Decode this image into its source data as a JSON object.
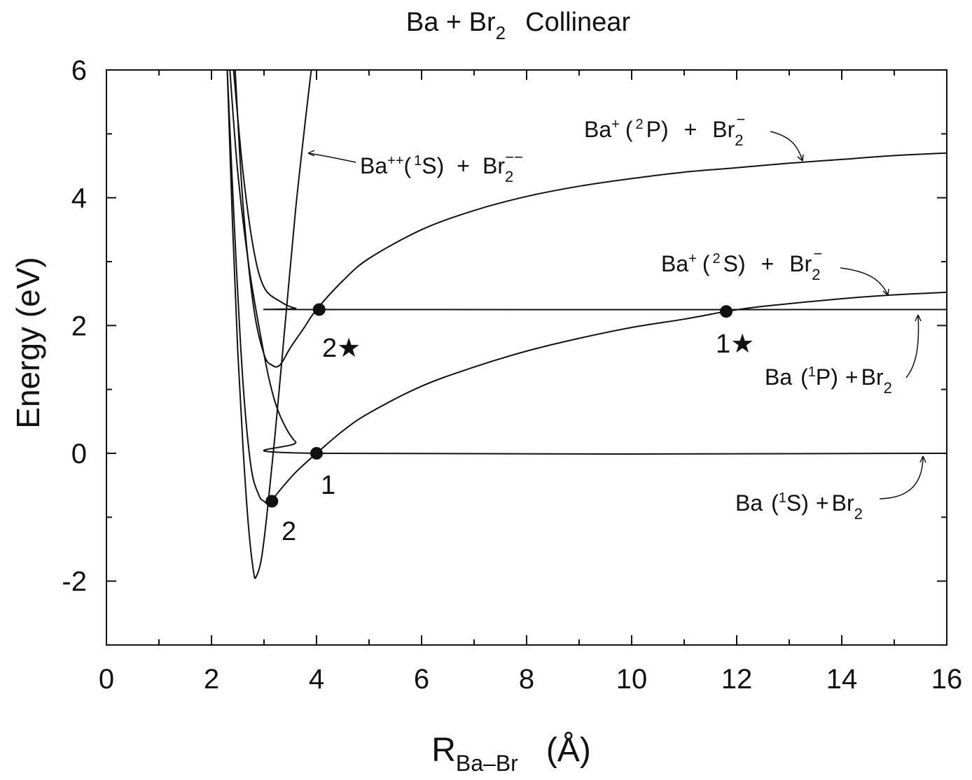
{
  "chart_data": {
    "type": "line",
    "title": {
      "main": "Ba + Br",
      "main_sub": "2",
      "suffix": "Collinear"
    },
    "xlabel": {
      "main": "R",
      "sub": "Ba–Br",
      "unit": "(Å)"
    },
    "ylabel": "Energy (eV)",
    "xlim": [
      0,
      16
    ],
    "ylim": [
      -3,
      6
    ],
    "x_ticks": [
      "0",
      "2",
      "4",
      "6",
      "8",
      "10",
      "12",
      "14",
      "16"
    ],
    "y_ticks": [
      "6",
      "4",
      "2",
      "0",
      "-2"
    ],
    "grid": false,
    "series": [
      {
        "label_id": "ba2-br2",
        "points": [
          [
            2.3,
            6
          ],
          [
            2.4,
            3.6
          ],
          [
            2.5,
            1.6
          ],
          [
            2.6,
            0.1
          ],
          [
            2.7,
            -1.1
          ],
          [
            2.8,
            -1.85
          ],
          [
            2.85,
            -1.93
          ],
          [
            2.95,
            -1.65
          ],
          [
            3.05,
            -1.0
          ],
          [
            3.2,
            0.2
          ],
          [
            3.4,
            2.0
          ],
          [
            3.6,
            3.8
          ],
          [
            3.8,
            5.3
          ],
          [
            3.9,
            6
          ]
        ]
      },
      {
        "label_id": "ba-1p-br2",
        "points": [
          [
            2.42,
            6
          ],
          [
            2.6,
            4.4
          ],
          [
            2.8,
            3.2
          ],
          [
            3.0,
            2.6
          ],
          [
            3.3,
            2.38
          ],
          [
            3.6,
            2.27
          ],
          [
            4.0,
            2.25
          ],
          [
            16,
            2.25
          ]
        ]
      },
      {
        "label_id": "ba-1s-br2",
        "points": [
          [
            2.35,
            6
          ],
          [
            2.5,
            4.4
          ],
          [
            2.7,
            3.0
          ],
          [
            2.9,
            2.0
          ],
          [
            3.1,
            1.15
          ],
          [
            3.3,
            0.6
          ],
          [
            3.6,
            0.18
          ],
          [
            4.0,
            0.0
          ],
          [
            16,
            0.0
          ]
        ]
      },
      {
        "label_id": "ba-2p-br2",
        "points": [
          [
            2.45,
            6
          ],
          [
            2.6,
            3.9
          ],
          [
            2.8,
            2.3
          ],
          [
            3.0,
            1.55
          ],
          [
            3.15,
            1.38
          ],
          [
            3.3,
            1.38
          ],
          [
            3.5,
            1.65
          ],
          [
            3.75,
            1.95
          ],
          [
            4.0,
            2.25
          ],
          [
            4.5,
            2.7
          ],
          [
            5,
            3.05
          ],
          [
            6,
            3.5
          ],
          [
            7,
            3.8
          ],
          [
            8,
            4.02
          ],
          [
            9,
            4.18
          ],
          [
            10,
            4.3
          ],
          [
            11,
            4.4
          ],
          [
            12,
            4.47
          ],
          [
            13,
            4.54
          ],
          [
            14,
            4.6
          ],
          [
            15,
            4.66
          ],
          [
            16,
            4.7
          ]
        ]
      },
      {
        "label_id": "ba-2s-br2",
        "points": [
          [
            2.3,
            6
          ],
          [
            2.45,
            3.3
          ],
          [
            2.6,
            1.1
          ],
          [
            2.75,
            -0.2
          ],
          [
            2.9,
            -0.65
          ],
          [
            3.0,
            -0.75
          ],
          [
            3.1,
            -0.78
          ],
          [
            3.3,
            -0.58
          ],
          [
            3.6,
            -0.3
          ],
          [
            4.0,
            0.0
          ],
          [
            4.5,
            0.35
          ],
          [
            5,
            0.63
          ],
          [
            6,
            1.05
          ],
          [
            7,
            1.35
          ],
          [
            8,
            1.6
          ],
          [
            9,
            1.8
          ],
          [
            10,
            1.97
          ],
          [
            11,
            2.1
          ],
          [
            11.8,
            2.22
          ],
          [
            12.5,
            2.3
          ],
          [
            14,
            2.42
          ],
          [
            15,
            2.48
          ],
          [
            16,
            2.52
          ]
        ]
      }
    ],
    "points_marked": [
      {
        "label": "1",
        "x": 4.0,
        "y": 0.0
      },
      {
        "label": "2",
        "x": 3.15,
        "y": -0.75
      },
      {
        "label": "2★",
        "x": 4.05,
        "y": 2.25
      },
      {
        "label": "1★",
        "x": 11.8,
        "y": 2.22
      }
    ],
    "annotations": {
      "ba2": {
        "base": "Ba",
        "sup1": "++",
        "state_open": "(",
        "state_sup": "1",
        "state": "S)",
        "plus": "+",
        "mol": "Br",
        "mol_sub": "2",
        "mol_sup": "−−"
      },
      "ba_2p": {
        "base": "Ba",
        "sup1": "+",
        "state_open": "(",
        "state_sup": "2",
        "state": "P)",
        "plus": "+",
        "mol": "Br",
        "mol_sub": "2",
        "mol_sup": "−"
      },
      "ba_2s": {
        "base": "Ba",
        "sup1": "+",
        "state_open": "(",
        "state_sup": "2",
        "state": "S)",
        "plus": "+",
        "mol": "Br",
        "mol_sub": "2",
        "mol_sup": "−"
      },
      "ba_1p": {
        "base": "Ba",
        "state_open": "(",
        "state_sup": "1",
        "state": "P)",
        "plus": "+",
        "mol": "Br",
        "mol_sub": "2"
      },
      "ba_1s": {
        "base": "Ba",
        "state_open": "(",
        "state_sup": "1",
        "state": "S)",
        "plus": "+",
        "mol": "Br",
        "mol_sub": "2"
      }
    },
    "colors": {
      "line": "#111111",
      "background": "#ffffff"
    }
  }
}
